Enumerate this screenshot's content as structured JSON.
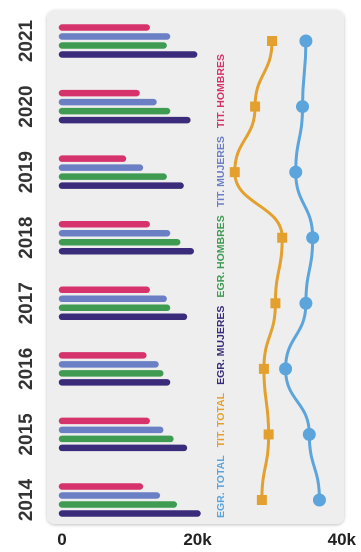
{
  "chart_data": {
    "type": "bar",
    "orientation": "horizontal",
    "categories": [
      "2014",
      "2015",
      "2016",
      "2017",
      "2018",
      "2019",
      "2020",
      "2021"
    ],
    "xlim": [
      0,
      40000
    ],
    "x_ticks": [
      "0",
      "20k",
      "40k"
    ],
    "series": [
      {
        "name": "TIT. HOMBRES",
        "color": "#d6336c",
        "kind": "bar",
        "values": [
          11500,
          12500,
          12000,
          12500,
          12500,
          9000,
          11000,
          12500
        ]
      },
      {
        "name": "TIT. MUJERES",
        "color": "#6a7fc4",
        "kind": "bar",
        "values": [
          14000,
          14500,
          13800,
          15000,
          15500,
          11500,
          13500,
          15500
        ]
      },
      {
        "name": "EGR. HOMBRES",
        "color": "#3f9b52",
        "kind": "bar",
        "values": [
          16500,
          16000,
          14500,
          15500,
          17000,
          15000,
          15500,
          15000
        ]
      },
      {
        "name": "EGR. MUJERES",
        "color": "#3a2c7a",
        "kind": "bar",
        "values": [
          20000,
          18000,
          15500,
          18000,
          19000,
          17500,
          18500,
          19500
        ]
      },
      {
        "name": "TIT. TOTAL",
        "color": "#e3a02e",
        "kind": "line",
        "values": [
          29500,
          30500,
          29800,
          31500,
          32500,
          25500,
          28500,
          31000
        ]
      },
      {
        "name": "EGR. TOTAL",
        "color": "#5ba4dc",
        "kind": "line",
        "values": [
          38000,
          36500,
          33000,
          36000,
          37000,
          34500,
          35500,
          36000
        ]
      }
    ],
    "legend_placement": "vertical, between bars and lines",
    "grid": false
  }
}
